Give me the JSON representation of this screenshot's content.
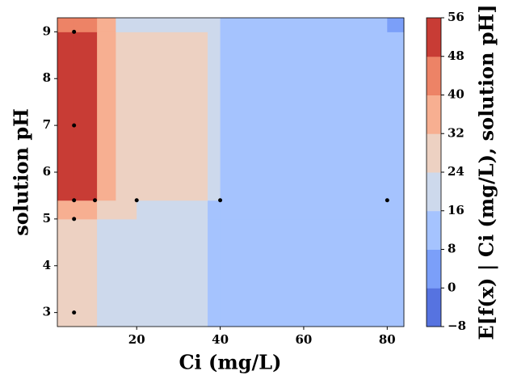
{
  "chart_data": {
    "type": "contour",
    "xlabel": "Ci (mg/L)",
    "ylabel": "solution pH",
    "colorbar_label": "E[f(x) | Ci (mg/L), solution pH]",
    "x_edges": [
      1,
      5,
      10.5,
      15,
      20,
      37,
      40,
      80,
      84
    ],
    "y_edges": [
      2.7,
      5,
      5.4,
      9,
      9.3
    ],
    "z": [
      [
        28,
        28,
        20,
        20,
        20,
        12,
        12,
        12
      ],
      [
        36,
        36,
        28,
        28,
        20,
        12,
        12,
        12
      ],
      [
        52,
        52,
        36,
        28,
        28,
        20,
        12,
        12
      ],
      [
        44,
        44,
        36,
        20,
        20,
        20,
        12,
        4
      ]
    ],
    "levels": [
      -8,
      0,
      8,
      16,
      24,
      32,
      40,
      48,
      56
    ],
    "colors": [
      "#5673e0",
      "#7b9ff9",
      "#a5c3fe",
      "#cdd9ec",
      "#edd1c2",
      "#f7af91",
      "#ed8366",
      "#c83c35"
    ],
    "points": {
      "x": [
        5,
        5,
        5,
        10,
        20,
        40,
        80,
        5,
        5
      ],
      "y": [
        9,
        7,
        5.4,
        5.4,
        5.4,
        5.4,
        5.4,
        5,
        3
      ],
      "color": "#000000"
    },
    "xlim": [
      1,
      84
    ],
    "ylim": [
      2.7,
      9.3
    ],
    "xticks": [
      20,
      40,
      60,
      80
    ],
    "yticks": [
      3,
      4,
      5,
      6,
      7,
      8,
      9
    ],
    "cbar_ticks": [
      {
        "value": -8,
        "label": "−8"
      },
      0,
      8,
      16,
      24,
      32,
      40,
      48,
      56
    ]
  }
}
